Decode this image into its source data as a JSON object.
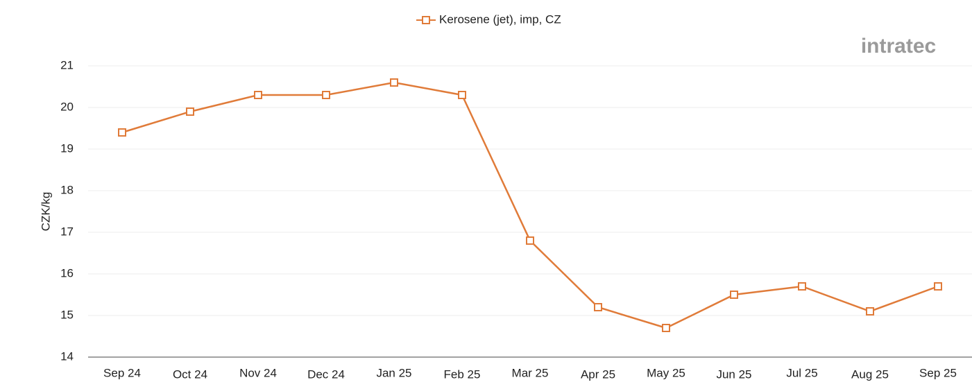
{
  "chart_data": {
    "type": "line",
    "logo": "intratec",
    "y_label": "CZK/kg",
    "categories": [
      "Sep 24",
      "Oct 24",
      "Nov 24",
      "Dec 24",
      "Jan 25",
      "Feb 25",
      "Mar 25",
      "Apr 25",
      "May 25",
      "Jun 25",
      "Jul 25",
      "Aug 25",
      "Sep 25"
    ],
    "series": [
      {
        "name": "Kerosene (jet), imp, CZ",
        "color": "#e07b39",
        "values": [
          19.4,
          19.9,
          20.3,
          20.3,
          20.6,
          20.3,
          16.8,
          15.2,
          14.7,
          15.5,
          15.7,
          15.1,
          15.7
        ]
      }
    ],
    "ylim": [
      14,
      21
    ],
    "yticks": [
      14,
      15,
      16,
      17,
      18,
      19,
      20,
      21
    ],
    "grid": true,
    "legend": "top"
  }
}
